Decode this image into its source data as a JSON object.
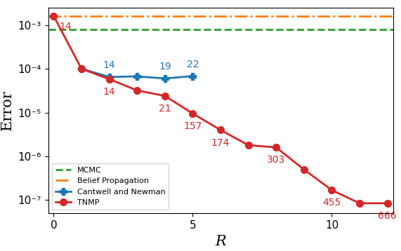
{
  "chart_data": {
    "type": "line",
    "x_label": "R",
    "y_label": "Error",
    "log": "y",
    "xlim": [
      -0.2,
      12.2
    ],
    "xticks": [
      0,
      5,
      10
    ],
    "ylim": [
      5e-08,
      0.0025
    ],
    "yticks": [
      {
        "value": 1e-07,
        "label": "10⁻⁷"
      },
      {
        "value": 1e-06,
        "label": "10⁻⁶"
      },
      {
        "value": 1e-05,
        "label": "10⁻⁵"
      },
      {
        "value": 0.0001,
        "label": "10⁻⁴"
      },
      {
        "value": 0.001,
        "label": "10⁻³"
      }
    ],
    "legend": "lower left",
    "series": [
      {
        "name": "MCMC",
        "type": "hline",
        "color": "#2ca02c",
        "line_style": "dashed",
        "values": [
          0.0008
        ]
      },
      {
        "name": "Belief Propagation",
        "type": "hline",
        "color": "#ff7f0e",
        "line_style": "dashdot",
        "values": [
          0.0016
        ]
      },
      {
        "name": "Cantwell and Newman",
        "type": "line",
        "color": "#1f77b4",
        "marker": "plus",
        "line_style": "solid",
        "x": [
          1,
          2,
          3,
          4,
          5
        ],
        "values": [
          0.0001,
          6.5e-05,
          6.7e-05,
          6e-05,
          6.8e-05
        ],
        "point_labels": [
          null,
          "14",
          null,
          "19",
          "22"
        ]
      },
      {
        "name": "TNMP",
        "type": "line",
        "color": "#d62728",
        "marker": "circle",
        "line_style": "solid",
        "x": [
          0,
          1,
          2,
          3,
          4,
          5,
          6,
          7,
          8,
          9,
          10,
          11,
          12
        ],
        "values": [
          0.0016,
          0.0001,
          5.8e-05,
          3.2e-05,
          2.4e-05,
          9.5e-06,
          4e-06,
          1.8e-06,
          1.6e-06,
          5e-07,
          1.7e-07,
          8.5e-08,
          8.5e-08
        ],
        "point_labels": [
          "14",
          null,
          "14",
          null,
          "21",
          "157",
          "174",
          null,
          "303",
          null,
          "455",
          null,
          "666"
        ]
      }
    ]
  }
}
